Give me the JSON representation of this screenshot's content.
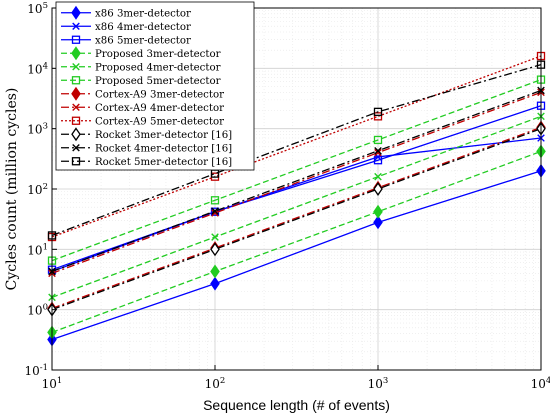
{
  "chart_data": {
    "type": "line",
    "title": "",
    "xlabel": "Sequence length (# of events)",
    "ylabel": "Cycles count (million cycles)",
    "xscale": "log",
    "yscale": "log",
    "xlim": [
      10,
      10000
    ],
    "ylim": [
      0.1,
      100000
    ],
    "grid": true,
    "legend_position": "top-left",
    "x": [
      10,
      100,
      1000,
      10000
    ],
    "x_tick_labels": [
      "10^1",
      "10^2",
      "10^3",
      "10^4"
    ],
    "y_tick_labels": [
      "10^-1",
      "10^0",
      "10^1",
      "10^2",
      "10^3",
      "10^4",
      "10^5"
    ],
    "series": [
      {
        "name": "x86 3mer-detector",
        "color": "#0000ff",
        "dash": "solid",
        "marker": "diamond-filled",
        "values": [
          0.32,
          2.7,
          28,
          200
        ]
      },
      {
        "name": "x86 4mer-detector",
        "color": "#0000ff",
        "dash": "solid",
        "marker": "x",
        "values": [
          4.3,
          42,
          340,
          700
        ]
      },
      {
        "name": "x86 5mer-detector",
        "color": "#0000ff",
        "dash": "solid",
        "marker": "square-open",
        "values": [
          4.6,
          42,
          300,
          2400
        ]
      },
      {
        "name": "Proposed 3mer-detector",
        "color": "#22cc22",
        "dash": "dashed",
        "marker": "diamond-filled",
        "values": [
          0.42,
          4.3,
          42,
          420
        ]
      },
      {
        "name": "Proposed 4mer-detector",
        "color": "#22cc22",
        "dash": "dashed",
        "marker": "x",
        "values": [
          1.6,
          16,
          160,
          1600
        ]
      },
      {
        "name": "Proposed 5mer-detector",
        "color": "#22cc22",
        "dash": "dashed",
        "marker": "square-open",
        "values": [
          6.5,
          65,
          650,
          6500
        ]
      },
      {
        "name": "Cortex-A9 3mer-detector",
        "color": "#c00000",
        "dash": "dashdot",
        "marker": "diamond-filled",
        "values": [
          1.05,
          10.5,
          105,
          1050
        ]
      },
      {
        "name": "Cortex-A9 4mer-detector",
        "color": "#c00000",
        "dash": "dashdot",
        "marker": "x",
        "values": [
          4.0,
          40,
          400,
          4000
        ]
      },
      {
        "name": "Cortex-A9 5mer-detector",
        "color": "#c00000",
        "dash": "dotted",
        "marker": "square-open",
        "values": [
          16,
          160,
          1600,
          16000
        ]
      },
      {
        "name": "Rocket 3mer-detector [16]",
        "color": "#000000",
        "dash": "dashdot",
        "marker": "diamond-open",
        "values": [
          1.0,
          10,
          100,
          1000
        ]
      },
      {
        "name": "Rocket 4mer-detector [16]",
        "color": "#000000",
        "dash": "dashdot",
        "marker": "x",
        "values": [
          4.3,
          43,
          430,
          4300
        ]
      },
      {
        "name": "Rocket 5mer-detector [16]",
        "color": "#000000",
        "dash": "dashdot",
        "marker": "square-open",
        "values": [
          17,
          180,
          1900,
          11500
        ]
      }
    ]
  }
}
